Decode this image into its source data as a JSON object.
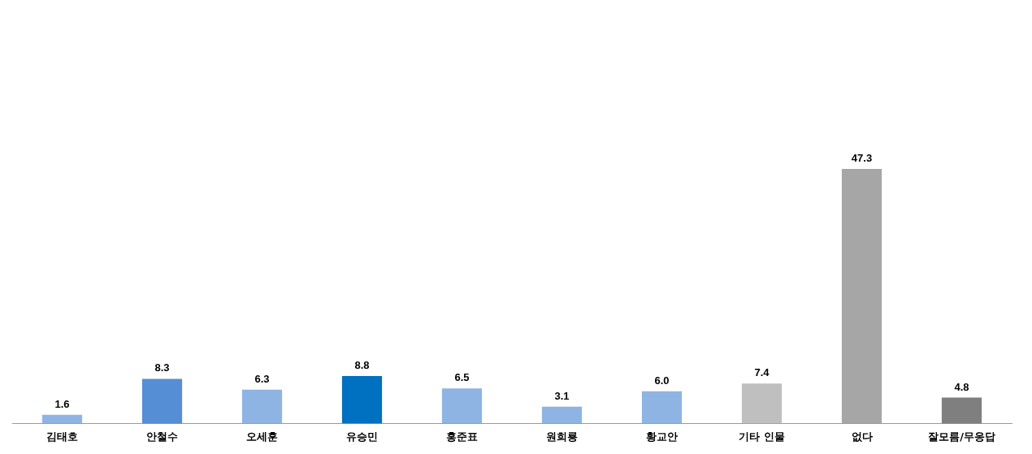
{
  "chart_data": {
    "type": "bar",
    "categories": [
      "김태호",
      "안철수",
      "오세훈",
      "유승민",
      "홍준표",
      "원희룡",
      "황교안",
      "기타 인물",
      "없다",
      "잘모름/무응답"
    ],
    "values": [
      1.6,
      8.3,
      6.3,
      8.8,
      6.5,
      3.1,
      6.0,
      7.4,
      47.3,
      4.8
    ],
    "colors": [
      "#8eb4e3",
      "#558ed5",
      "#8eb4e3",
      "#0070c0",
      "#8eb4e3",
      "#8eb4e3",
      "#8eb4e3",
      "#bfbfbf",
      "#a6a6a6",
      "#7f7f7f"
    ],
    "value_labels": [
      "1.6",
      "8.3",
      "6.3",
      "8.8",
      "6.5",
      "3.1",
      "6.0",
      "7.4",
      "47.3",
      "4.8"
    ],
    "tick_labels": "x",
    "grid": false,
    "legend": false
  }
}
